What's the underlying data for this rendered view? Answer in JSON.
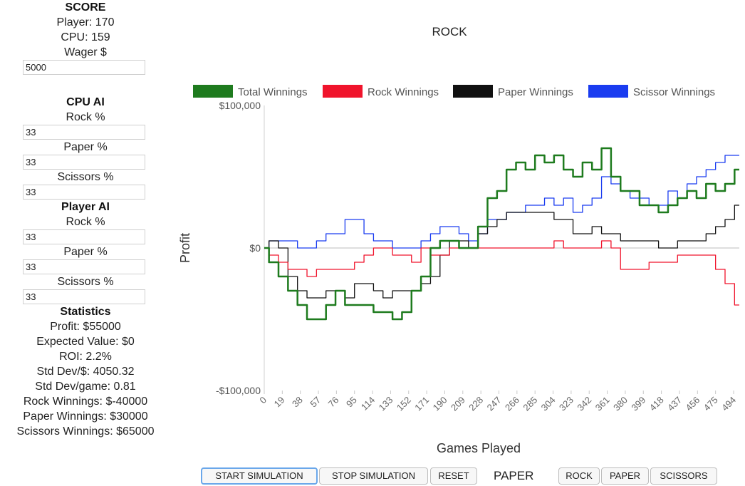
{
  "score": {
    "title": "SCORE",
    "player": "Player: 170",
    "cpu": "CPU: 159",
    "wager_label": "Wager $",
    "wager_value": "5000"
  },
  "cpu_ai": {
    "title": "CPU AI",
    "rock_label": "Rock %",
    "rock_value": "33",
    "paper_label": "Paper %",
    "paper_value": "33",
    "scissors_label": "Scissors %",
    "scissors_value": "33"
  },
  "player_ai": {
    "title": "Player AI",
    "rock_label": "Rock %",
    "rock_value": "33",
    "paper_label": "Paper %",
    "paper_value": "33",
    "scissors_label": "Scissors %",
    "scissors_value": "33"
  },
  "statistics": {
    "title": "Statistics",
    "profit": "Profit: $55000",
    "expected_value": "Expected Value: $0",
    "roi": "ROI: 2.2%",
    "std_dev_dollar": "Std Dev/$: 4050.32",
    "std_dev_game": "Std Dev/game: 0.81",
    "rock_winnings": "Rock Winnings: $-40000",
    "paper_winnings": "Paper Winnings: $30000",
    "scissors_winnings": "Scissors Winnings: $65000"
  },
  "controls": {
    "start": "START SIMULATION",
    "stop": "STOP SIMULATION",
    "reset": "RESET",
    "current_choice": "PAPER",
    "rock": "ROCK",
    "paper": "PAPER",
    "scissors": "SCISSORS"
  },
  "chart_data": {
    "type": "line",
    "title": "ROCK",
    "xlabel": "Games Played",
    "ylabel": "Profit",
    "ylim": [
      -100000,
      100000
    ],
    "y_ticks": [
      {
        "value": 100000,
        "label": "$100,000"
      },
      {
        "value": 0,
        "label": "$0"
      },
      {
        "value": -100000,
        "label": "-$100,000"
      }
    ],
    "x_range": [
      0,
      500
    ],
    "x_ticks": [
      0,
      19,
      38,
      57,
      76,
      95,
      114,
      133,
      152,
      171,
      190,
      209,
      228,
      247,
      266,
      285,
      304,
      323,
      342,
      361,
      380,
      399,
      418,
      437,
      456,
      475,
      494
    ],
    "legend_position": "top",
    "grid": false,
    "series": [
      {
        "name": "Total Winnings",
        "color": "#1e7b1e",
        "x": [
          0,
          10,
          20,
          30,
          40,
          50,
          60,
          70,
          80,
          90,
          100,
          110,
          120,
          130,
          140,
          150,
          160,
          170,
          180,
          190,
          200,
          210,
          220,
          230,
          240,
          250,
          260,
          270,
          280,
          290,
          300,
          310,
          320,
          330,
          340,
          350,
          360,
          370,
          380,
          390,
          400,
          410,
          420,
          430,
          440,
          450,
          460,
          470,
          480,
          490,
          500
        ],
        "y": [
          0,
          -10000,
          -20000,
          -30000,
          -40000,
          -50000,
          -50000,
          -40000,
          -30000,
          -40000,
          -40000,
          -40000,
          -45000,
          -45000,
          -50000,
          -45000,
          -30000,
          -20000,
          0,
          5000,
          5000,
          0,
          0,
          15000,
          35000,
          40000,
          55000,
          60000,
          55000,
          65000,
          60000,
          65000,
          55000,
          50000,
          60000,
          55000,
          70000,
          50000,
          40000,
          40000,
          30000,
          30000,
          25000,
          30000,
          35000,
          40000,
          35000,
          45000,
          40000,
          45000,
          55000
        ]
      },
      {
        "name": "Rock Winnings",
        "color": "#f0142c",
        "x": [
          0,
          10,
          20,
          30,
          40,
          50,
          60,
          70,
          80,
          90,
          100,
          110,
          120,
          130,
          140,
          150,
          160,
          170,
          180,
          190,
          200,
          210,
          220,
          230,
          240,
          250,
          260,
          270,
          280,
          290,
          300,
          310,
          320,
          330,
          340,
          350,
          360,
          370,
          380,
          390,
          400,
          410,
          420,
          430,
          440,
          450,
          460,
          470,
          480,
          490,
          500
        ],
        "y": [
          0,
          -5000,
          -10000,
          -15000,
          -15000,
          -20000,
          -15000,
          -15000,
          -15000,
          -15000,
          -10000,
          -5000,
          0,
          0,
          -5000,
          -5000,
          -10000,
          0,
          -5000,
          -5000,
          0,
          0,
          0,
          0,
          0,
          0,
          0,
          0,
          0,
          0,
          0,
          5000,
          0,
          0,
          0,
          0,
          5000,
          0,
          -15000,
          -15000,
          -15000,
          -10000,
          -10000,
          -10000,
          -5000,
          -5000,
          -5000,
          -5000,
          -15000,
          -25000,
          -40000
        ]
      },
      {
        "name": "Paper Winnings",
        "color": "#111111",
        "x": [
          0,
          10,
          20,
          30,
          40,
          50,
          60,
          70,
          80,
          90,
          100,
          110,
          120,
          130,
          140,
          150,
          160,
          170,
          180,
          190,
          200,
          210,
          220,
          230,
          240,
          250,
          260,
          270,
          280,
          290,
          300,
          310,
          320,
          330,
          340,
          350,
          360,
          370,
          380,
          390,
          400,
          410,
          420,
          430,
          440,
          450,
          460,
          470,
          480,
          490,
          500
        ],
        "y": [
          0,
          5000,
          0,
          -20000,
          -30000,
          -35000,
          -35000,
          -30000,
          -30000,
          -35000,
          -25000,
          -25000,
          -30000,
          -35000,
          -30000,
          -30000,
          -30000,
          -25000,
          -20000,
          -5000,
          5000,
          5000,
          0,
          10000,
          15000,
          20000,
          25000,
          25000,
          25000,
          25000,
          25000,
          20000,
          20000,
          10000,
          10000,
          15000,
          10000,
          10000,
          5000,
          5000,
          5000,
          5000,
          0,
          0,
          5000,
          5000,
          5000,
          10000,
          15000,
          20000,
          30000
        ]
      },
      {
        "name": "Scissor Winnings",
        "color": "#1a3cf0",
        "x": [
          0,
          10,
          20,
          30,
          40,
          50,
          60,
          70,
          80,
          90,
          100,
          110,
          120,
          130,
          140,
          150,
          160,
          170,
          180,
          190,
          200,
          210,
          220,
          230,
          240,
          250,
          260,
          270,
          280,
          290,
          300,
          310,
          320,
          330,
          340,
          350,
          360,
          370,
          380,
          390,
          400,
          410,
          420,
          430,
          440,
          450,
          460,
          470,
          480,
          490,
          500
        ],
        "y": [
          0,
          5000,
          5000,
          5000,
          0,
          0,
          5000,
          10000,
          10000,
          20000,
          20000,
          10000,
          5000,
          5000,
          0,
          0,
          0,
          5000,
          10000,
          15000,
          15000,
          10000,
          5000,
          10000,
          20000,
          20000,
          25000,
          25000,
          30000,
          30000,
          35000,
          30000,
          35000,
          25000,
          30000,
          35000,
          50000,
          45000,
          40000,
          35000,
          35000,
          30000,
          30000,
          40000,
          35000,
          45000,
          50000,
          55000,
          60000,
          65000,
          65000
        ]
      }
    ]
  }
}
